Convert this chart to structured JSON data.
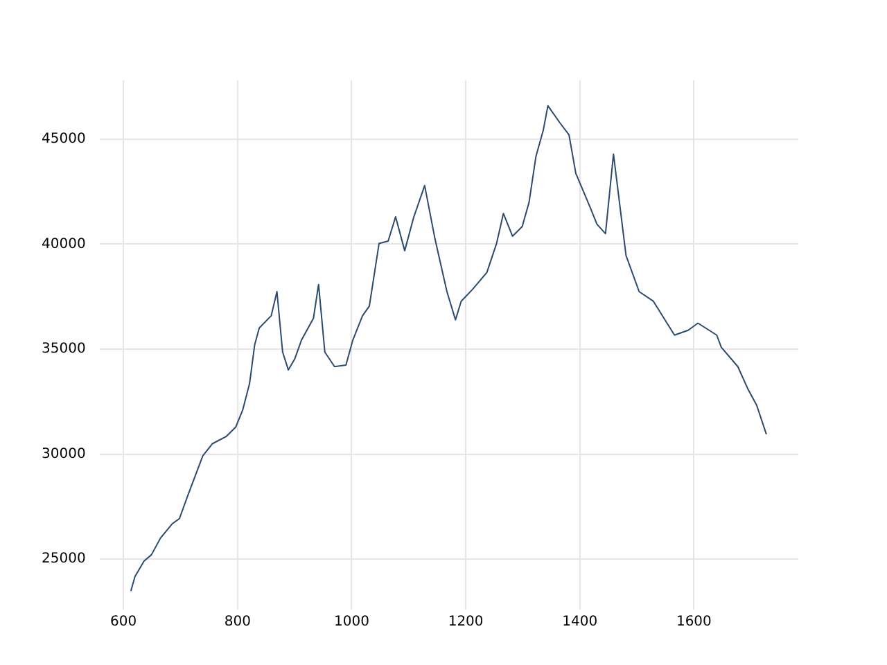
{
  "chart_data": {
    "type": "line",
    "color": "#2c4a6e",
    "grid": true,
    "marker": "none",
    "line_style": "solid",
    "xlim": [
      558,
      1783
    ],
    "ylim": [
      22600,
      47800
    ],
    "xticks": [
      600,
      800,
      1000,
      1200,
      1400,
      1600
    ],
    "yticks": [
      25000,
      30000,
      35000,
      40000,
      45000
    ],
    "x": [
      613,
      620,
      636,
      649,
      665,
      686,
      698,
      714,
      739,
      756,
      780,
      797,
      809,
      821,
      830,
      838,
      859,
      869,
      879,
      889,
      900,
      912,
      933,
      942,
      953,
      970,
      990,
      1002,
      1019,
      1031,
      1048,
      1064,
      1077,
      1093,
      1109,
      1128,
      1146,
      1167,
      1182,
      1192,
      1212,
      1237,
      1254,
      1266,
      1282,
      1299,
      1311,
      1323,
      1336,
      1344,
      1365,
      1381,
      1393,
      1418,
      1430,
      1445,
      1459,
      1481,
      1504,
      1529,
      1550,
      1566,
      1590,
      1607,
      1640,
      1648,
      1677,
      1694,
      1710,
      1727
    ],
    "values": [
      23480,
      24170,
      24910,
      25210,
      26010,
      26700,
      26930,
      28120,
      29920,
      30500,
      30840,
      31300,
      32100,
      33360,
      35210,
      36010,
      36590,
      37740,
      34860,
      34010,
      34520,
      35430,
      36470,
      38080,
      34860,
      34170,
      34240,
      35430,
      36590,
      37050,
      40030,
      40150,
      41300,
      39690,
      41300,
      42790,
      40260,
      37740,
      36400,
      37280,
      37850,
      38650,
      40030,
      41460,
      40380,
      40840,
      41990,
      44170,
      45430,
      46590,
      45780,
      45210,
      43370,
      41760,
      40950,
      40500,
      44290,
      39460,
      37740,
      37280,
      36360,
      35670,
      35900,
      36240,
      35670,
      35090,
      34170,
      33140,
      32330,
      30950
    ]
  }
}
